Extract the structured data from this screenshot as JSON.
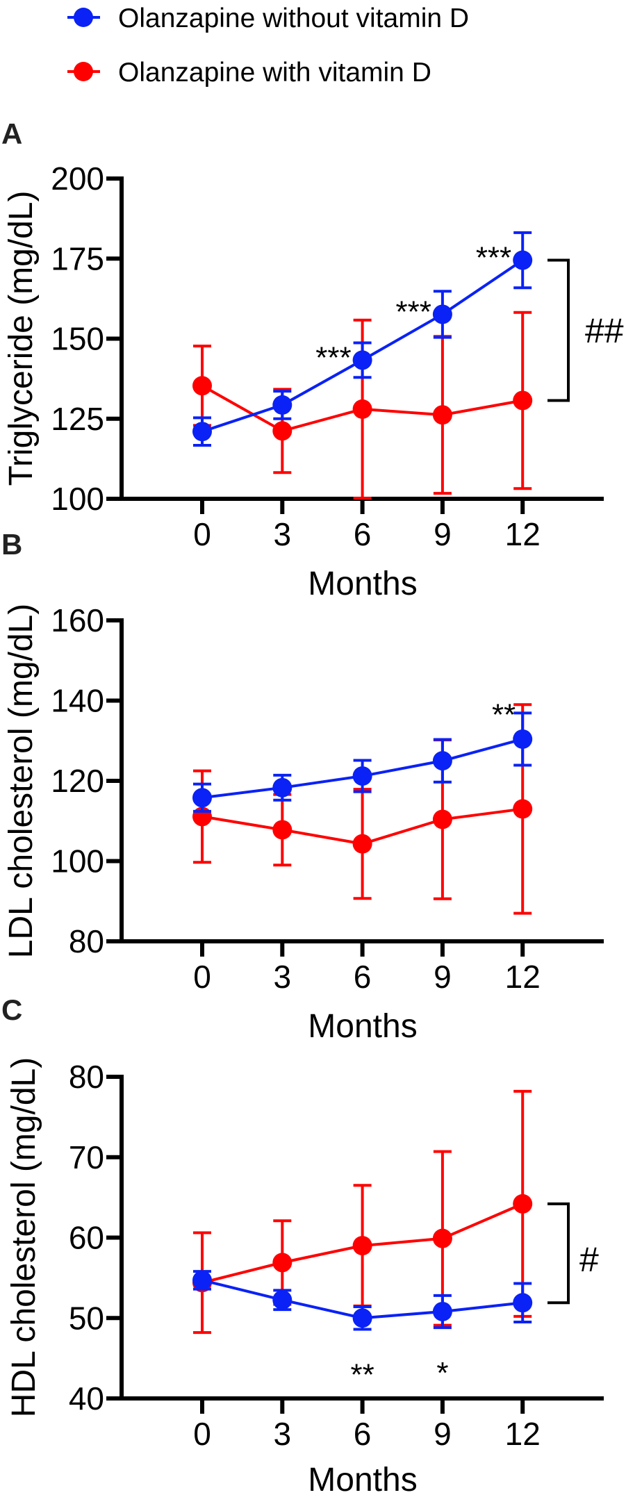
{
  "colors": {
    "without_vitamin_d": "#0a22f5",
    "with_vitamin_d": "#ff0000",
    "axis": "#000000"
  },
  "legend": [
    {
      "label": "Olanzapine without vitamin D",
      "color_key": "without_vitamin_d",
      "placement": "top-left"
    },
    {
      "label": "Olanzapine with vitamin D",
      "color_key": "with_vitamin_d",
      "placement": "top-left"
    }
  ],
  "chart_data": [
    {
      "panel": "A",
      "type": "line",
      "ylabel": "Triglyceride (mg/dL)",
      "xlabel": "Months",
      "x": [
        0,
        3,
        6,
        9,
        12
      ],
      "xticks": [
        "0",
        "3",
        "6",
        "9",
        "12"
      ],
      "ylim": [
        100,
        200
      ],
      "yticks": [
        "100",
        "125",
        "150",
        "175",
        "200"
      ],
      "series": [
        {
          "name": "Olanzapine without vitamin D",
          "color_key": "without_vitamin_d",
          "values": [
            121.0,
            129.3,
            143.3,
            157.6,
            174.5
          ],
          "errors": [
            4.3,
            4.3,
            5.4,
            7.2,
            8.6
          ]
        },
        {
          "name": "Olanzapine with vitamin D",
          "color_key": "with_vitamin_d",
          "values": [
            135.3,
            121.2,
            128.0,
            126.2,
            130.7
          ],
          "errors": [
            12.4,
            13.0,
            27.8,
            24.5,
            27.5
          ]
        }
      ],
      "annotations": [
        {
          "text": "***",
          "x": 6,
          "series": 0,
          "placement": "left"
        },
        {
          "text": "***",
          "x": 9,
          "series": 0,
          "placement": "left"
        },
        {
          "text": "***",
          "x": 12,
          "series": 0,
          "placement": "left"
        }
      ],
      "group_bracket": {
        "text": "##",
        "at_x": 12
      }
    },
    {
      "panel": "B",
      "type": "line",
      "ylabel": "LDL cholesterol (mg/dL)",
      "xlabel": "Months",
      "x": [
        0,
        3,
        6,
        9,
        12
      ],
      "xticks": [
        "0",
        "3",
        "6",
        "9",
        "12"
      ],
      "ylim": [
        80,
        160
      ],
      "yticks": [
        "80",
        "100",
        "120",
        "140",
        "160"
      ],
      "series": [
        {
          "name": "Olanzapine without vitamin D",
          "color_key": "without_vitamin_d",
          "values": [
            115.8,
            118.3,
            121.2,
            125.0,
            130.4
          ],
          "errors": [
            3.4,
            3.1,
            3.9,
            5.3,
            6.5
          ]
        },
        {
          "name": "Olanzapine with vitamin D",
          "color_key": "with_vitamin_d",
          "values": [
            111.1,
            107.8,
            104.3,
            110.4,
            113.0
          ],
          "errors": [
            11.4,
            8.8,
            13.6,
            19.8,
            26.0
          ]
        }
      ],
      "annotations": [
        {
          "text": "**",
          "x": 12,
          "series": 0,
          "placement": "above-left"
        }
      ],
      "group_bracket": null
    },
    {
      "panel": "C",
      "type": "line",
      "ylabel": "HDL cholesterol (mg/dL)",
      "xlabel": "Months",
      "x": [
        0,
        3,
        6,
        9,
        12
      ],
      "xticks": [
        "0",
        "3",
        "6",
        "9",
        "12"
      ],
      "ylim": [
        40,
        80
      ],
      "yticks": [
        "40",
        "50",
        "60",
        "70",
        "80"
      ],
      "series": [
        {
          "name": "Olanzapine without vitamin D",
          "color_key": "without_vitamin_d",
          "values": [
            54.7,
            52.25,
            50.0,
            50.8,
            51.9
          ],
          "errors": [
            1.1,
            1.2,
            1.4,
            2.0,
            2.4
          ]
        },
        {
          "name": "Olanzapine with vitamin D",
          "color_key": "with_vitamin_d",
          "values": [
            54.4,
            56.9,
            59.0,
            59.9,
            64.2
          ],
          "errors": [
            6.2,
            5.2,
            7.5,
            10.8,
            14.0
          ]
        }
      ],
      "annotations": [
        {
          "text": "**",
          "x": 6,
          "series": 0,
          "placement": "below"
        },
        {
          "text": "*",
          "x": 9,
          "series": 0,
          "placement": "below"
        }
      ],
      "group_bracket": {
        "text": "#",
        "at_x": 12
      }
    }
  ]
}
